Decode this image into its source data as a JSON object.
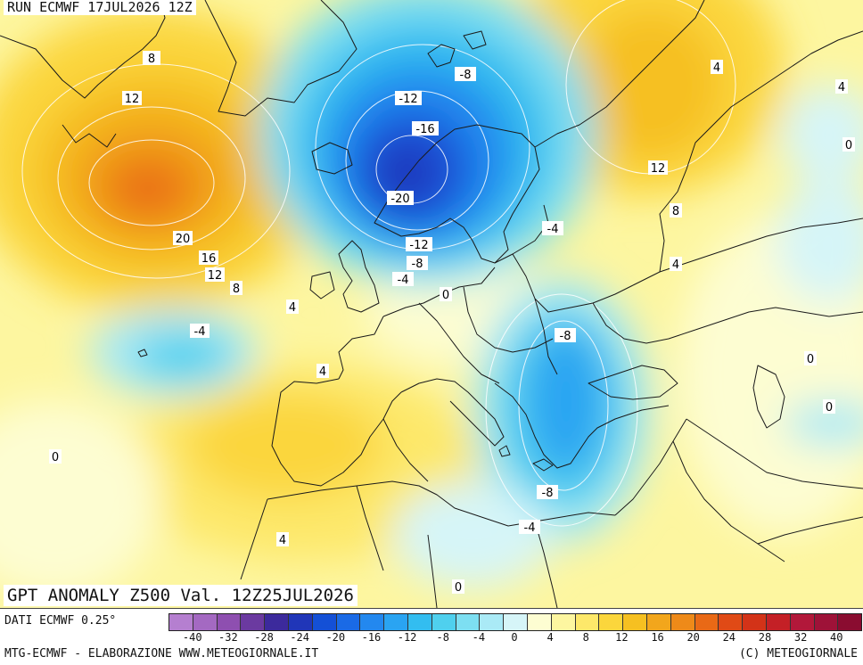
{
  "header": {
    "run_label": "RUN ECMWF 17JUL2026 12Z",
    "title": "GPT ANOMALY Z500 Val. 12Z25JUL2026"
  },
  "footer": {
    "data_source": "DATI ECMWF 0.25°",
    "credit_left": "MTG-ECMWF - ELABORAZIONE WWW.METEOGIORNALE.IT",
    "credit_right": "(C) METEOGIORNALE"
  },
  "legend": {
    "colors": [
      "#b57fd0",
      "#a469c2",
      "#8e4fb0",
      "#6b3aa0",
      "#3c2a9c",
      "#2036b8",
      "#1450d6",
      "#1a6ae6",
      "#2388ef",
      "#2aa4f2",
      "#33bdf0",
      "#4fd0ee",
      "#7ddff2",
      "#aaeaf6",
      "#d6f5f8",
      "#fdfdd2",
      "#fdf6a0",
      "#fde86a",
      "#fbd63c",
      "#f6c021",
      "#f2a61c",
      "#ee8a19",
      "#e96916",
      "#e04a16",
      "#d33318",
      "#c42026",
      "#b2183a",
      "#9e1238",
      "#8a0c30"
    ],
    "tick_labels": [
      "-40",
      "-32",
      "-28",
      "-24",
      "-20",
      "-16",
      "-12",
      "-8",
      "-4",
      "0",
      "4",
      "8",
      "12",
      "16",
      "20",
      "24",
      "28",
      "32",
      "40"
    ]
  },
  "map": {
    "contour_labels": [
      {
        "text": "8"
      },
      {
        "text": "12"
      },
      {
        "text": "20"
      },
      {
        "text": "16"
      },
      {
        "text": "12"
      },
      {
        "text": "8"
      },
      {
        "text": "4"
      },
      {
        "text": "-4"
      },
      {
        "text": "4"
      },
      {
        "text": "0"
      },
      {
        "text": "4"
      },
      {
        "text": "0"
      },
      {
        "text": "-8"
      },
      {
        "text": "-12"
      },
      {
        "text": "-16"
      },
      {
        "text": "-20"
      },
      {
        "text": "-12"
      },
      {
        "text": "-8"
      },
      {
        "text": "-4"
      },
      {
        "text": "0"
      },
      {
        "text": "-4"
      },
      {
        "text": "-8"
      },
      {
        "text": "-8"
      },
      {
        "text": "-4"
      },
      {
        "text": "4"
      },
      {
        "text": "12"
      },
      {
        "text": "8"
      },
      {
        "text": "4"
      },
      {
        "text": "4"
      },
      {
        "text": "0"
      },
      {
        "text": "0"
      },
      {
        "text": "0"
      }
    ]
  }
}
